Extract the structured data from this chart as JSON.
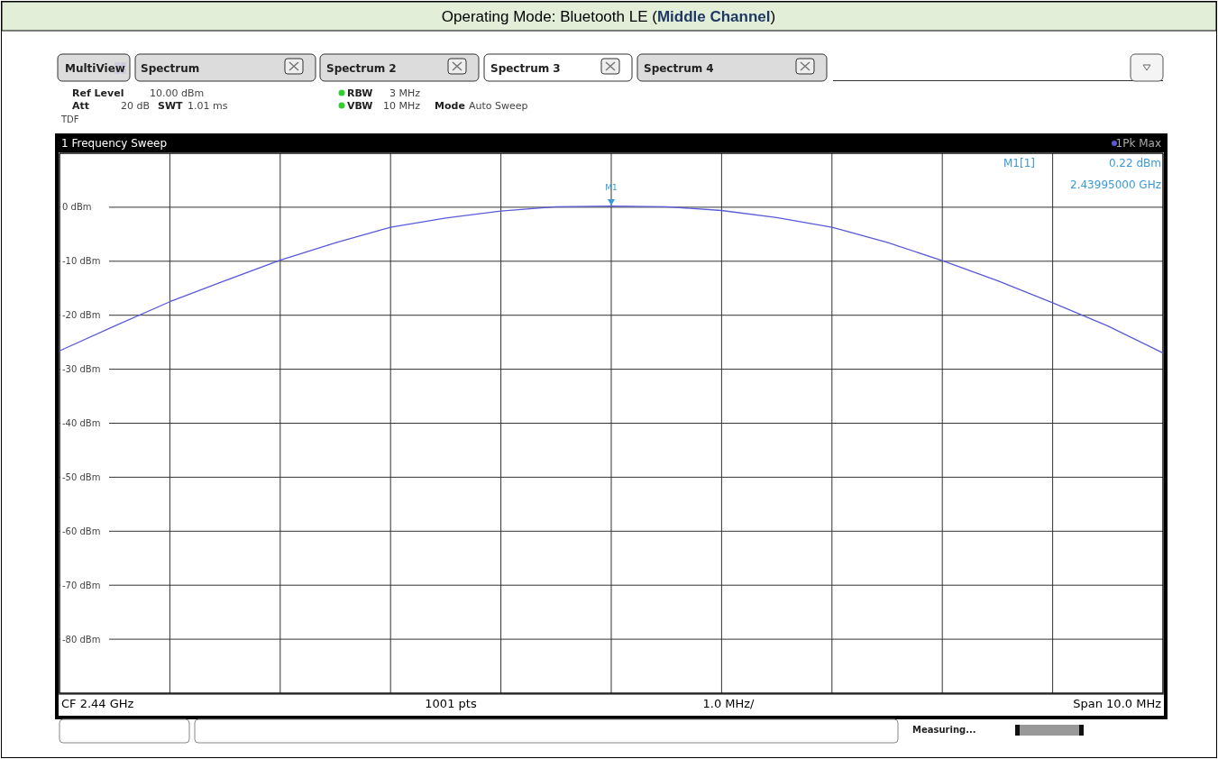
{
  "chart_data": {
    "type": "line",
    "title": "Operating Mode: Bluetooth LE (Middle Channel)",
    "categories": [
      null,
      null,
      null,
      null,
      null,
      null,
      null,
      null,
      null,
      null,
      null,
      null,
      null,
      null,
      null,
      null,
      null,
      null,
      null,
      null,
      null
    ],
    "series": [
      {
        "name": "1Pk Max",
        "color": "#5a5ad8",
        "values": [
          -26.6,
          -22,
          -17.5,
          -13.6,
          -9.8,
          -6.6,
          -3.7,
          -2,
          -0.7,
          0.1,
          0.22,
          0.1,
          -0.6,
          -1.9,
          -3.7,
          -6.5,
          -9.9,
          -13.6,
          -17.7,
          -22,
          -27
        ]
      }
    ],
    "ylim": [
      -90,
      10
    ],
    "yticks": [
      {
        "value": 10,
        "label": null
      },
      {
        "value": 0,
        "label": "0 dBm"
      },
      {
        "value": -10,
        "label": "-10 dBm"
      },
      {
        "value": -20,
        "label": "-20 dBm"
      },
      {
        "value": -30,
        "label": "-30 dBm"
      },
      {
        "value": -40,
        "label": "-40 dBm"
      },
      {
        "value": -50,
        "label": "-50 dBm"
      },
      {
        "value": -60,
        "label": "-60 dBm"
      },
      {
        "value": -70,
        "label": "-70 dBm"
      },
      {
        "value": -80,
        "label": "-80 dBm"
      },
      {
        "value": -90,
        "label": null
      }
    ],
    "grid": true,
    "legend": "top right",
    "marker": "none",
    "line_style": "solid",
    "annotations": [
      "MultiView",
      "Spectrum",
      "Spectrum 2",
      "Spectrum 3",
      "Spectrum 4",
      "Ref Level",
      "10.00 dBm",
      "Att",
      "20 dB",
      "SWT",
      "1.01 ms",
      "RBW",
      "3 MHz",
      "VBW",
      "10 MHz",
      "Mode",
      "Auto Sweep",
      "TDF",
      "1 Frequency Sweep",
      "M1[1]",
      "0.22 dBm",
      "2.43995000 GHz",
      "CF 2.44 GHz",
      "1001 pts",
      "1.0 MHz/",
      "Span 10.0 MHz",
      "Measuring...",
      "M1"
    ]
  }
}
